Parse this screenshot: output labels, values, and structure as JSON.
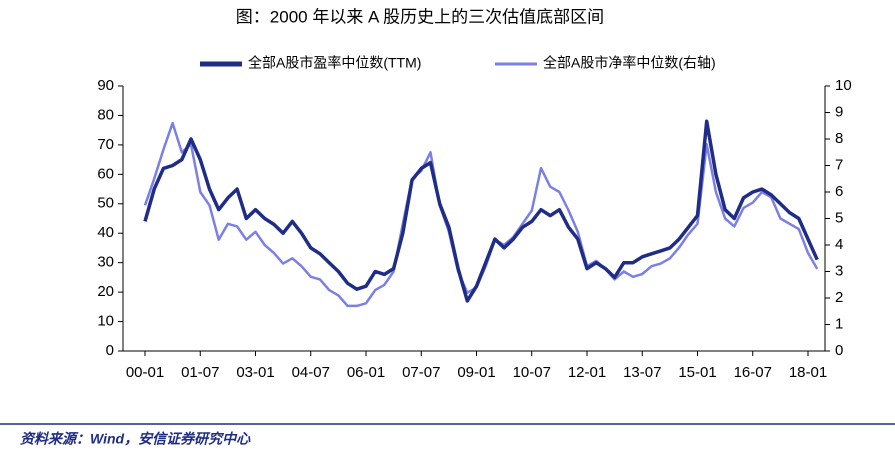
{
  "chart_data": {
    "type": "line",
    "title": "图：2000 年以来 A 股历史上的三次估值底部区间",
    "source": "资料来源：Wind，安信证券研究中心",
    "categories": [
      "00-01",
      null,
      null,
      null,
      null,
      null,
      "01-07",
      null,
      null,
      null,
      null,
      null,
      "03-01",
      null,
      null,
      null,
      null,
      null,
      "04-07",
      null,
      null,
      null,
      null,
      null,
      "06-01",
      null,
      null,
      null,
      null,
      null,
      "07-07",
      null,
      null,
      null,
      null,
      null,
      "09-01",
      null,
      null,
      null,
      null,
      null,
      "10-07",
      null,
      null,
      null,
      null,
      null,
      "12-01",
      null,
      null,
      null,
      null,
      null,
      "13-07",
      null,
      null,
      null,
      null,
      null,
      "15-01",
      null,
      null,
      null,
      null,
      null,
      "16-07",
      null,
      null,
      null,
      null,
      null,
      "18-01",
      null
    ],
    "series": [
      {
        "name": "全部A股市盈率中位数(TTM)",
        "color": "#1f2d86",
        "axis": "y",
        "values": [
          44,
          55,
          62,
          63,
          65,
          72,
          65,
          55,
          48,
          52,
          55,
          45,
          48,
          45,
          43,
          40,
          44,
          40,
          35,
          33,
          30,
          27,
          23,
          21,
          22,
          27,
          26,
          28,
          40,
          58,
          62,
          64,
          50,
          42,
          28,
          17,
          22,
          30,
          38,
          35,
          38,
          42,
          44,
          48,
          46,
          48,
          42,
          38,
          28,
          30,
          28,
          25,
          30,
          30,
          32,
          33,
          34,
          35,
          38,
          42,
          46,
          78,
          60,
          48,
          45,
          52,
          54,
          55,
          53,
          50,
          47,
          45,
          38,
          31
        ]
      },
      {
        "name": "全部A股市净率中位数(右轴)",
        "color": "#7b7fe6",
        "axis": "y2",
        "values": [
          5.5,
          6.5,
          7.6,
          8.6,
          7.5,
          7.8,
          6.0,
          5.5,
          4.2,
          4.8,
          4.7,
          4.2,
          4.5,
          4.0,
          3.7,
          3.3,
          3.5,
          3.2,
          2.8,
          2.7,
          2.3,
          2.1,
          1.7,
          1.7,
          1.8,
          2.3,
          2.5,
          3.0,
          4.8,
          6.5,
          6.8,
          7.5,
          5.5,
          4.5,
          3.0,
          2.2,
          2.4,
          3.2,
          4.2,
          4.0,
          4.3,
          4.8,
          5.3,
          6.9,
          6.2,
          6.0,
          5.3,
          4.5,
          3.2,
          3.4,
          3.1,
          2.7,
          3.0,
          2.8,
          2.9,
          3.2,
          3.3,
          3.5,
          3.9,
          4.4,
          4.8,
          7.8,
          6.0,
          5.0,
          4.7,
          5.4,
          5.6,
          6.0,
          5.8,
          5.0,
          4.8,
          4.6,
          3.7,
          3.1
        ]
      }
    ],
    "ylim": [
      0,
      90
    ],
    "yticks": [
      0,
      10,
      20,
      30,
      40,
      50,
      60,
      70,
      80,
      90
    ],
    "y2lim": [
      0,
      10
    ],
    "y2ticks": [
      0,
      1,
      2,
      3,
      4,
      5,
      6,
      7,
      8,
      9,
      10
    ],
    "grid": false,
    "legend": "top"
  }
}
